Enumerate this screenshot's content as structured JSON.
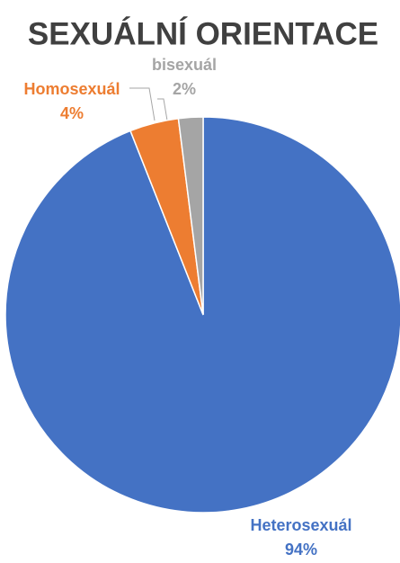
{
  "chart_data": {
    "type": "pie",
    "title": "SEXUÁLNÍ ORIENTACE",
    "categories": [
      "Heterosexuál",
      "Homosexuál",
      "bisexuál"
    ],
    "values": [
      94,
      4,
      2
    ],
    "value_labels": [
      "94%",
      "4%",
      "2%"
    ],
    "colors": [
      "#4472c4",
      "#ed7d31",
      "#a5a5a5"
    ]
  }
}
